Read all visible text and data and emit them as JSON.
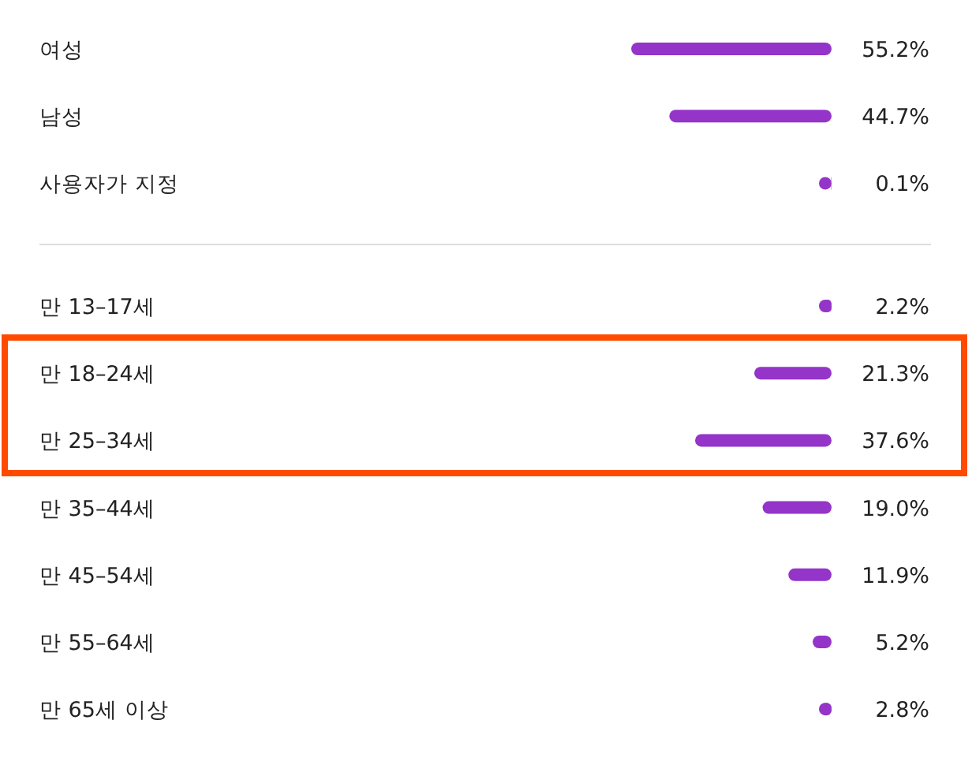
{
  "chart_data": [
    {
      "type": "bar",
      "orientation": "horizontal",
      "categories": [
        "여성",
        "남성",
        "사용자가 지정"
      ],
      "values": [
        55.2,
        44.7,
        0.1
      ],
      "value_labels": [
        "55.2%",
        "44.7%",
        "0.1%"
      ],
      "color": "#9434c8",
      "tick_labels": false
    },
    {
      "type": "bar",
      "orientation": "horizontal",
      "categories": [
        "만 13–17세",
        "만 18–24세",
        "만 25–34세",
        "만 35–44세",
        "만 45–54세",
        "만 55–64세",
        "만 65세 이상"
      ],
      "values": [
        2.2,
        21.3,
        37.6,
        19.0,
        11.9,
        5.2,
        2.8
      ],
      "value_labels": [
        "2.2%",
        "21.3%",
        "37.6%",
        "19.0%",
        "11.9%",
        "5.2%",
        "2.8%"
      ],
      "color": "#9434c8",
      "tick_labels": false
    }
  ]
}
